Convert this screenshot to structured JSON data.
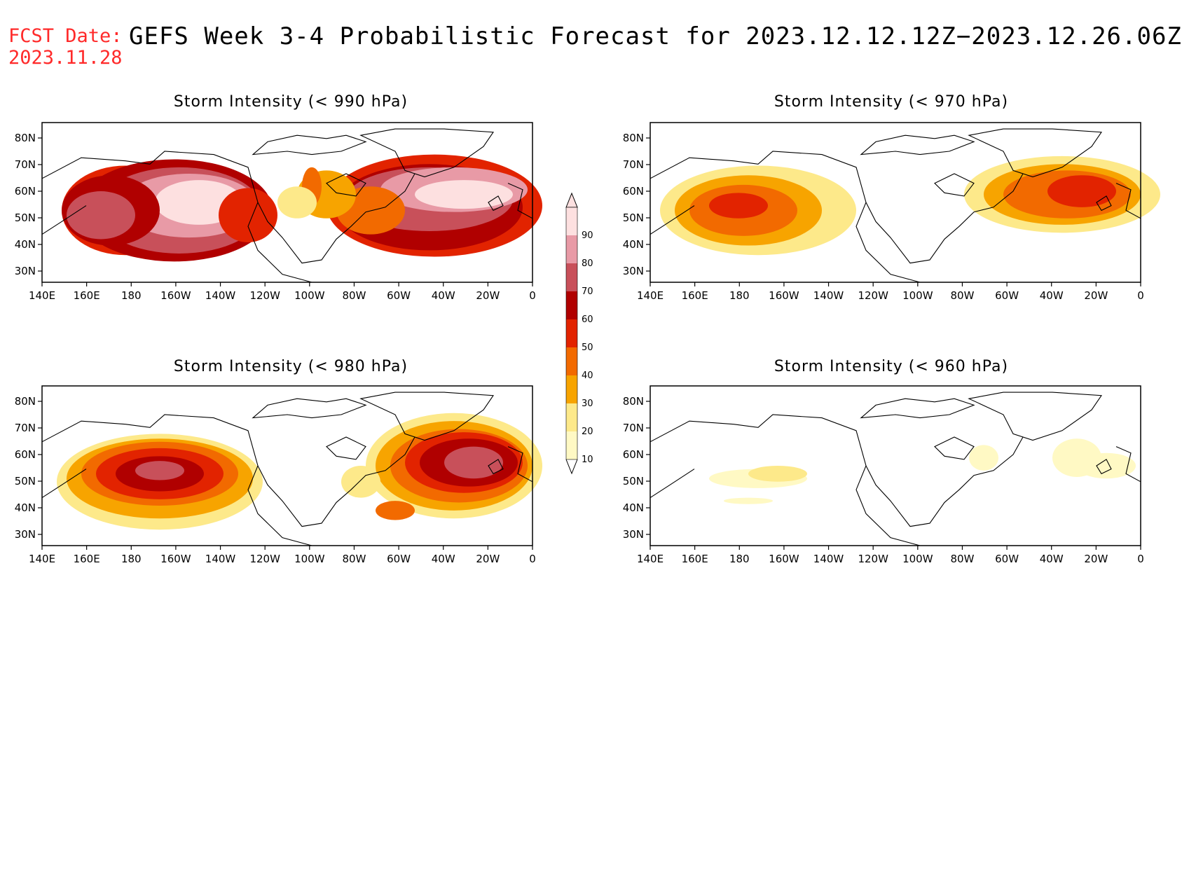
{
  "header": {
    "fcst_label": "FCST Date:",
    "fcst_date": "2023.11.28",
    "title": "GEFS Week 3-4 Probabilistic Forecast for 2023.12.12.12Z−2023.12.26.06Z"
  },
  "colors": {
    "fcst_text": "#ff2a2a",
    "palette": [
      "#fff9c4",
      "#fde98a",
      "#f7a400",
      "#f26a00",
      "#e22300",
      "#b00000",
      "#c8505a",
      "#e89aa6",
      "#fde0e0"
    ]
  },
  "maps": [
    {
      "title": "Storm Intensity (< 990 hPa)"
    },
    {
      "title": "Storm Intensity (< 970 hPa)"
    },
    {
      "title": "Storm Intensity (< 980 hPa)"
    },
    {
      "title": "Storm Intensity (< 960 hPa)"
    }
  ],
  "axes": {
    "lon_labels": [
      "140E",
      "160E",
      "180",
      "160W",
      "140W",
      "120W",
      "100W",
      "80W",
      "60W",
      "40W",
      "20W",
      "0"
    ],
    "lat_labels": [
      "80N",
      "70N",
      "60N",
      "50N",
      "40N",
      "30N"
    ]
  },
  "colorbar": {
    "labels": [
      "90",
      "80",
      "70",
      "60",
      "50",
      "40",
      "30",
      "20",
      "10"
    ]
  }
}
